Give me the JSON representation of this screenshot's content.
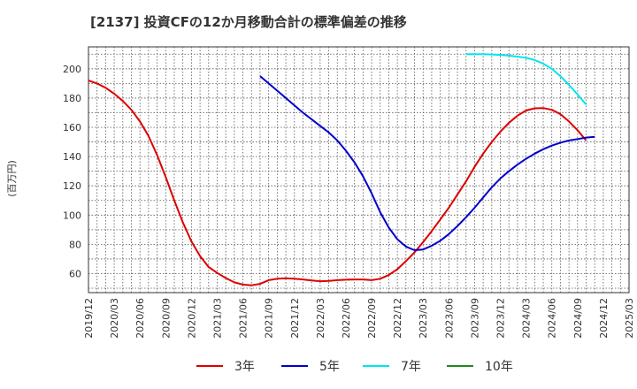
{
  "chart_data": {
    "type": "line",
    "title": "[2137]  投資CFの12か月移動合計の標準偏差の推移",
    "ylabel": "(百万円)",
    "xlabel": "",
    "ylim": [
      47,
      215
    ],
    "yticks": [
      60,
      80,
      100,
      120,
      140,
      160,
      180,
      200
    ],
    "x_ticks": [
      "2019/12",
      "2020/03",
      "2020/06",
      "2020/09",
      "2020/12",
      "2021/03",
      "2021/06",
      "2021/09",
      "2021/12",
      "2022/03",
      "2022/06",
      "2022/09",
      "2022/12",
      "2023/03",
      "2023/06",
      "2023/09",
      "2023/12",
      "2024/03",
      "2024/06",
      "2024/09",
      "2024/12",
      "2025/03"
    ],
    "grid": true,
    "legend_position": "bottom",
    "series": [
      {
        "name": "3年",
        "color": "#dd0000",
        "points": [
          [
            "2019/12",
            192
          ],
          [
            "2020/01",
            190
          ],
          [
            "2020/02",
            187
          ],
          [
            "2020/03",
            183
          ],
          [
            "2020/04",
            178
          ],
          [
            "2020/05",
            172
          ],
          [
            "2020/06",
            164
          ],
          [
            "2020/07",
            154
          ],
          [
            "2020/08",
            141
          ],
          [
            "2020/09",
            126
          ],
          [
            "2020/10",
            110
          ],
          [
            "2020/11",
            95
          ],
          [
            "2020/12",
            82
          ],
          [
            "2021/01",
            72
          ],
          [
            "2021/02",
            64.5
          ],
          [
            "2021/03",
            60.5
          ],
          [
            "2021/04",
            57
          ],
          [
            "2021/05",
            54
          ],
          [
            "2021/06",
            52.5
          ],
          [
            "2021/07",
            52
          ],
          [
            "2021/08",
            53
          ],
          [
            "2021/09",
            55.5
          ],
          [
            "2021/10",
            56.5
          ],
          [
            "2021/11",
            56.8
          ],
          [
            "2021/12",
            56.5
          ],
          [
            "2022/01",
            56
          ],
          [
            "2022/02",
            55.3
          ],
          [
            "2022/03",
            54.8
          ],
          [
            "2022/04",
            55
          ],
          [
            "2022/05",
            55.5
          ],
          [
            "2022/06",
            55.8
          ],
          [
            "2022/07",
            56
          ],
          [
            "2022/08",
            56
          ],
          [
            "2022/09",
            55.5
          ],
          [
            "2022/10",
            56.5
          ],
          [
            "2022/11",
            59
          ],
          [
            "2022/12",
            63
          ],
          [
            "2023/01",
            68.5
          ],
          [
            "2023/02",
            74.5
          ],
          [
            "2023/03",
            81.5
          ],
          [
            "2023/04",
            89
          ],
          [
            "2023/05",
            97
          ],
          [
            "2023/06",
            105
          ],
          [
            "2023/07",
            114
          ],
          [
            "2023/08",
            123
          ],
          [
            "2023/09",
            133
          ],
          [
            "2023/10",
            142
          ],
          [
            "2023/11",
            150
          ],
          [
            "2023/12",
            157
          ],
          [
            "2024/01",
            163
          ],
          [
            "2024/02",
            168
          ],
          [
            "2024/03",
            171.5
          ],
          [
            "2024/04",
            173
          ],
          [
            "2024/05",
            173.2
          ],
          [
            "2024/06",
            172
          ],
          [
            "2024/07",
            169
          ],
          [
            "2024/08",
            164
          ],
          [
            "2024/09",
            158
          ],
          [
            "2024/10",
            151
          ]
        ]
      },
      {
        "name": "5年",
        "color": "#0000cc",
        "points": [
          [
            "2021/08",
            195
          ],
          [
            "2021/09",
            190
          ],
          [
            "2021/10",
            185
          ],
          [
            "2021/11",
            180
          ],
          [
            "2021/12",
            175
          ],
          [
            "2022/01",
            170
          ],
          [
            "2022/02",
            165.5
          ],
          [
            "2022/03",
            161
          ],
          [
            "2022/04",
            156.5
          ],
          [
            "2022/05",
            151
          ],
          [
            "2022/06",
            144
          ],
          [
            "2022/07",
            136
          ],
          [
            "2022/08",
            126.5
          ],
          [
            "2022/09",
            115
          ],
          [
            "2022/10",
            102
          ],
          [
            "2022/11",
            91.5
          ],
          [
            "2022/12",
            83.5
          ],
          [
            "2023/01",
            78.5
          ],
          [
            "2023/02",
            76
          ],
          [
            "2023/03",
            76.5
          ],
          [
            "2023/04",
            79
          ],
          [
            "2023/05",
            82.5
          ],
          [
            "2023/06",
            87
          ],
          [
            "2023/07",
            92.5
          ],
          [
            "2023/08",
            98.5
          ],
          [
            "2023/09",
            105
          ],
          [
            "2023/10",
            112
          ],
          [
            "2023/11",
            119
          ],
          [
            "2023/12",
            125
          ],
          [
            "2024/01",
            130
          ],
          [
            "2024/02",
            134.5
          ],
          [
            "2024/03",
            138.5
          ],
          [
            "2024/04",
            142
          ],
          [
            "2024/05",
            145
          ],
          [
            "2024/06",
            147.5
          ],
          [
            "2024/07",
            149.5
          ],
          [
            "2024/08",
            151
          ],
          [
            "2024/09",
            152
          ],
          [
            "2024/10",
            153
          ],
          [
            "2024/11",
            153.5
          ]
        ]
      },
      {
        "name": "7年",
        "color": "#00e5ee",
        "points": [
          [
            "2023/08",
            210
          ],
          [
            "2023/09",
            210
          ],
          [
            "2023/10",
            210
          ],
          [
            "2023/11",
            209.8
          ],
          [
            "2023/12",
            209.5
          ],
          [
            "2024/01",
            209
          ],
          [
            "2024/02",
            208.3
          ],
          [
            "2024/03",
            207.5
          ],
          [
            "2024/04",
            206
          ],
          [
            "2024/05",
            203.5
          ],
          [
            "2024/06",
            200
          ],
          [
            "2024/07",
            195
          ],
          [
            "2024/08",
            189
          ],
          [
            "2024/09",
            182.5
          ],
          [
            "2024/10",
            175.5
          ]
        ]
      },
      {
        "name": "10年",
        "color": "#228822",
        "points": []
      }
    ]
  }
}
